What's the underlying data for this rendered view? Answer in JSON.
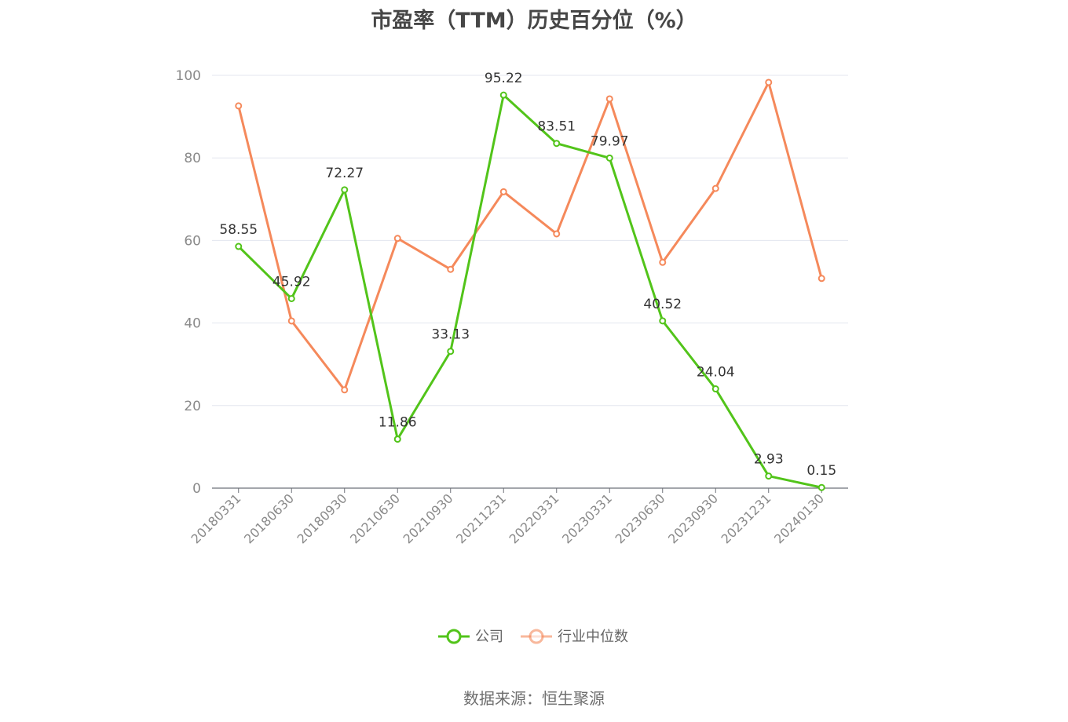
{
  "chart_data": {
    "type": "line",
    "title": "市盈率（TTM）历史百分位（%）",
    "categories": [
      "20180331",
      "20180630",
      "20180930",
      "20210630",
      "20210930",
      "20211231",
      "20220331",
      "20230331",
      "20230630",
      "20230930",
      "20231231",
      "20240130"
    ],
    "ylim": [
      0,
      100
    ],
    "yticks": [
      0,
      20,
      40,
      60,
      80,
      100
    ],
    "grid": true,
    "legend_position": "bottom-center",
    "series": [
      {
        "name": "公司",
        "color": "#52c41a",
        "show_labels": true,
        "values": [
          58.55,
          45.92,
          72.27,
          11.86,
          33.13,
          95.22,
          83.51,
          79.97,
          40.52,
          24.04,
          2.93,
          0.15
        ]
      },
      {
        "name": "行业中位数",
        "color": "#f5895b",
        "show_labels": false,
        "values": [
          92.6,
          40.5,
          23.8,
          60.5,
          53.0,
          71.8,
          61.6,
          94.3,
          54.7,
          72.6,
          98.3,
          50.8
        ]
      }
    ]
  },
  "source": "数据来源：恒生聚源"
}
